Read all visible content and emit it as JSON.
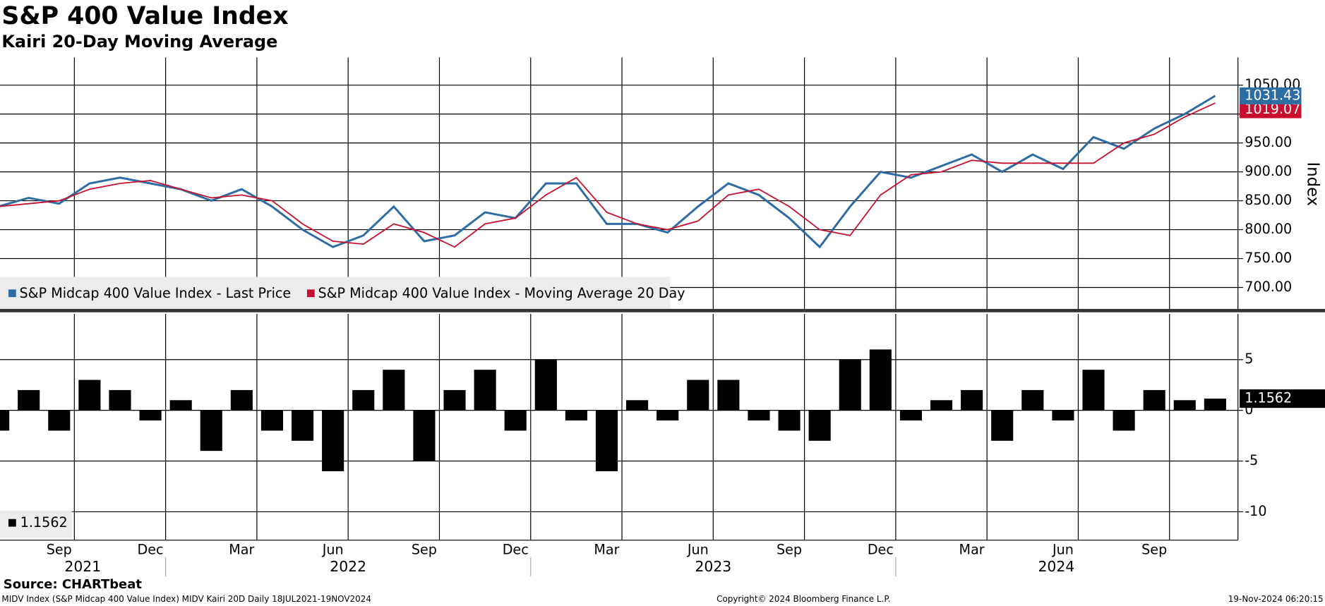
{
  "title": "S&P 400 Value Index",
  "subtitle": "Kairi 20-Day Moving Average",
  "source": "Source: CHARTbeat",
  "footer_left": "MIDV Index (S&P Midcap 400 Value Index) MIDV Kairi 20D  Daily 18JUL2021-19NOV2024",
  "footer_center": "Copyright© 2024 Bloomberg Finance L.P.",
  "footer_right": "19-Nov-2024 06:20:15",
  "chart_data": [
    {
      "type": "line",
      "x": [
        "2021-07",
        "2021-08",
        "2021-09",
        "2021-10",
        "2021-11",
        "2021-12",
        "2022-01",
        "2022-02",
        "2022-03",
        "2022-04",
        "2022-05",
        "2022-06",
        "2022-07",
        "2022-08",
        "2022-09",
        "2022-10",
        "2022-11",
        "2022-12",
        "2023-01",
        "2023-02",
        "2023-03",
        "2023-04",
        "2023-05",
        "2023-06",
        "2023-07",
        "2023-08",
        "2023-09",
        "2023-10",
        "2023-11",
        "2023-12",
        "2024-01",
        "2024-02",
        "2024-03",
        "2024-04",
        "2024-05",
        "2024-06",
        "2024-07",
        "2024-08",
        "2024-09",
        "2024-10",
        "2024-11"
      ],
      "series": [
        {
          "name": "S&P Midcap 400 Value Index - Last Price",
          "color": "#2e6ca4",
          "values": [
            840,
            855,
            845,
            880,
            890,
            880,
            870,
            850,
            870,
            840,
            800,
            770,
            790,
            840,
            780,
            790,
            830,
            820,
            880,
            880,
            810,
            810,
            795,
            840,
            880,
            860,
            820,
            770,
            840,
            900,
            890,
            910,
            930,
            900,
            930,
            905,
            960,
            940,
            975,
            1000,
            1031.43
          ]
        },
        {
          "name": "S&P Midcap 400 Value Index - Moving Average 20 Day",
          "color": "#c8102e",
          "values": [
            840,
            845,
            850,
            870,
            880,
            885,
            870,
            855,
            860,
            850,
            810,
            780,
            775,
            810,
            795,
            770,
            810,
            820,
            860,
            890,
            830,
            810,
            800,
            815,
            860,
            870,
            840,
            800,
            790,
            860,
            895,
            900,
            920,
            915,
            915,
            915,
            915,
            950,
            965,
            995,
            1019.07
          ]
        }
      ],
      "ylim": [
        660,
        1098
      ],
      "yticks": [
        {
          "value": 700,
          "label": "700.00"
        },
        {
          "value": 750,
          "label": "750.00"
        },
        {
          "value": 800,
          "label": "800.00"
        },
        {
          "value": 850,
          "label": "850.00"
        },
        {
          "value": 900,
          "label": "900.00"
        },
        {
          "value": 950,
          "label": "950.00"
        },
        {
          "value": 1000,
          "label": "1000.00"
        },
        {
          "value": 1050,
          "label": "1050.00"
        }
      ],
      "y_label": "Index",
      "grid": true,
      "legend": "lower left"
    },
    {
      "type": "bar",
      "x": [
        "2021-07",
        "2021-08",
        "2021-09",
        "2021-10",
        "2021-11",
        "2021-12",
        "2022-01",
        "2022-02",
        "2022-03",
        "2022-04",
        "2022-05",
        "2022-06",
        "2022-07",
        "2022-08",
        "2022-09",
        "2022-10",
        "2022-11",
        "2022-12",
        "2023-01",
        "2023-02",
        "2023-03",
        "2023-04",
        "2023-05",
        "2023-06",
        "2023-07",
        "2023-08",
        "2023-09",
        "2023-10",
        "2023-11",
        "2023-12",
        "2024-01",
        "2024-02",
        "2024-03",
        "2024-04",
        "2024-05",
        "2024-06",
        "2024-07",
        "2024-08",
        "2024-09",
        "2024-10",
        "2024-11"
      ],
      "values": [
        -2,
        2,
        -2,
        3,
        2,
        -1,
        1,
        -4,
        2,
        -2,
        -3,
        -6,
        2,
        4,
        -5,
        2,
        4,
        -2,
        5,
        -1,
        -6,
        1,
        -1,
        3,
        3,
        -1,
        -2,
        -3,
        5,
        6,
        -1,
        1,
        2,
        -3,
        2,
        -1,
        4,
        -2,
        2,
        1,
        1.1562
      ],
      "color": "#000000",
      "ylim": [
        -12.8,
        9.5
      ],
      "yticks": [
        5,
        0,
        -5,
        -10
      ],
      "grid": true,
      "legend": "lower left",
      "xticks": [
        {
          "value": "2021-09",
          "label": "Sep"
        },
        {
          "value": "2021-12",
          "label": "Dec"
        },
        {
          "value": "2022-03",
          "label": "Mar"
        },
        {
          "value": "2022-06",
          "label": "Jun"
        },
        {
          "value": "2022-09",
          "label": "Sep"
        },
        {
          "value": "2022-12",
          "label": "Dec"
        },
        {
          "value": "2023-03",
          "label": "Mar"
        },
        {
          "value": "2023-06",
          "label": "Jun"
        },
        {
          "value": "2023-09",
          "label": "Sep"
        },
        {
          "value": "2023-12",
          "label": "Dec"
        },
        {
          "value": "2024-03",
          "label": "Mar"
        },
        {
          "value": "2024-06",
          "label": "Jun"
        },
        {
          "value": "2024-09",
          "label": "Sep"
        }
      ],
      "year_labels": [
        "2021",
        "2022",
        "2023",
        "2024"
      ]
    }
  ]
}
